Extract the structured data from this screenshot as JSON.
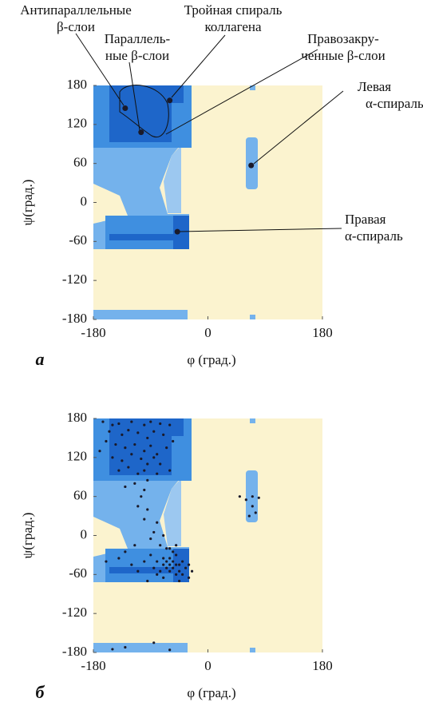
{
  "chart_data": [
    {
      "type": "scatter",
      "panel": "а",
      "x_label": "φ (град.)",
      "y_label": "ψ(град.)",
      "xlim": [
        -180,
        180
      ],
      "xticks": [
        -180,
        0,
        180
      ],
      "ylim": [
        -180,
        180
      ],
      "yticks": [
        180,
        120,
        60,
        0,
        -60,
        -120,
        -180
      ],
      "color": "#1a1a2a",
      "x": [
        -130,
        -105,
        -60,
        68,
        -48
      ],
      "values": [
        145,
        108,
        157,
        57,
        -45
      ],
      "annotations": [
        {
          "text": [
            "Антипараллельные",
            "β-слои"
          ]
        },
        {
          "text": [
            "Тройная спираль",
            "коллагена"
          ]
        },
        {
          "text": [
            "Параллель-",
            "ные β-слои"
          ]
        },
        {
          "text": [
            "Правозакру-",
            "ченные β-слои"
          ]
        },
        {
          "text": [
            "Левая",
            "α-спираль"
          ]
        },
        {
          "text": [
            "Правая",
            "α-спираль"
          ]
        }
      ]
    },
    {
      "type": "scatter",
      "panel": "б",
      "x_label": "φ (град.)",
      "y_label": "ψ(град.)",
      "xlim": [
        -180,
        180
      ],
      "xticks": [
        -180,
        0,
        180
      ],
      "ylim": [
        -180,
        180
      ],
      "yticks": [
        180,
        120,
        60,
        0,
        -60,
        -120,
        -180
      ],
      "color": "#1a1a2a",
      "x": [
        -165,
        -150,
        -140,
        -120,
        -100,
        -90,
        -75,
        -60,
        -155,
        -135,
        -125,
        -110,
        -95,
        -85,
        -70,
        -145,
        -130,
        -115,
        -100,
        -90,
        -80,
        -65,
        -55,
        -150,
        -135,
        -120,
        -105,
        -95,
        -85,
        -75,
        -140,
        -125,
        -110,
        -100,
        -80,
        -60,
        -160,
        -170,
        -95,
        -115,
        -130,
        -100,
        -105,
        -110,
        -95,
        -100,
        -80,
        -85,
        -90,
        -70,
        -75,
        -65,
        -115,
        -130,
        -140,
        -160,
        -120,
        -100,
        -90,
        -85,
        -80,
        -75,
        -70,
        -70,
        -65,
        -65,
        -60,
        -60,
        -60,
        -55,
        -55,
        -50,
        -50,
        -50,
        -45,
        -45,
        -40,
        -40,
        -35,
        -30,
        -30,
        -25,
        -55,
        -60,
        -50,
        -70,
        -80,
        -95,
        -110,
        -45,
        50,
        60,
        70,
        70,
        65,
        75,
        80,
        -150,
        -130,
        -85,
        -60
      ],
      "values": [
        175,
        170,
        172,
        175,
        170,
        175,
        172,
        170,
        160,
        155,
        162,
        158,
        150,
        160,
        155,
        140,
        135,
        140,
        130,
        138,
        125,
        135,
        145,
        120,
        115,
        125,
        118,
        110,
        120,
        110,
        100,
        105,
        95,
        100,
        95,
        100,
        145,
        130,
        85,
        80,
        75,
        70,
        60,
        45,
        40,
        25,
        20,
        5,
        -5,
        0,
        -15,
        -20,
        -15,
        -25,
        -35,
        -40,
        -45,
        -40,
        -30,
        -50,
        -40,
        -55,
        -35,
        -45,
        -50,
        -40,
        -45,
        -55,
        -35,
        -50,
        -40,
        -45,
        -30,
        -60,
        -45,
        -55,
        -40,
        -60,
        -50,
        -45,
        -65,
        -55,
        -25,
        -20,
        -15,
        -65,
        -60,
        -70,
        -55,
        -70,
        60,
        55,
        60,
        45,
        30,
        35,
        58,
        -175,
        -172,
        -165,
        -176
      ]
    }
  ]
}
